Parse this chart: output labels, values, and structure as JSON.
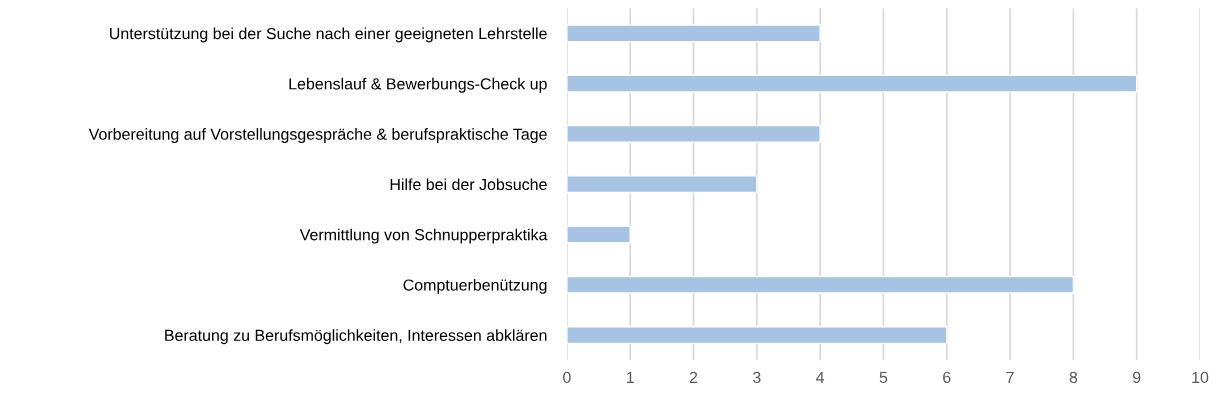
{
  "chart_data": {
    "type": "bar",
    "orientation": "horizontal",
    "categories": [
      "Unterstützung bei der Suche nach einer geeigneten Lehrstelle",
      "Lebenslauf & Bewerbungs-Check up",
      "Vorbereitung auf Vorstellungsgespräche & berufspraktische Tage",
      "Hilfe bei der Jobsuche",
      "Vermittlung von Schnupperpraktika",
      "Comptuerbenützung",
      "Beratung zu Berufsmöglichkeiten, Interessen abklären"
    ],
    "values": [
      4,
      9,
      4,
      3,
      1,
      8,
      6
    ],
    "color": "#a6c3e3",
    "xlim": [
      0,
      10
    ],
    "xticks": [
      0,
      1,
      2,
      3,
      4,
      5,
      6,
      7,
      8,
      9,
      10
    ],
    "grid": "x"
  }
}
